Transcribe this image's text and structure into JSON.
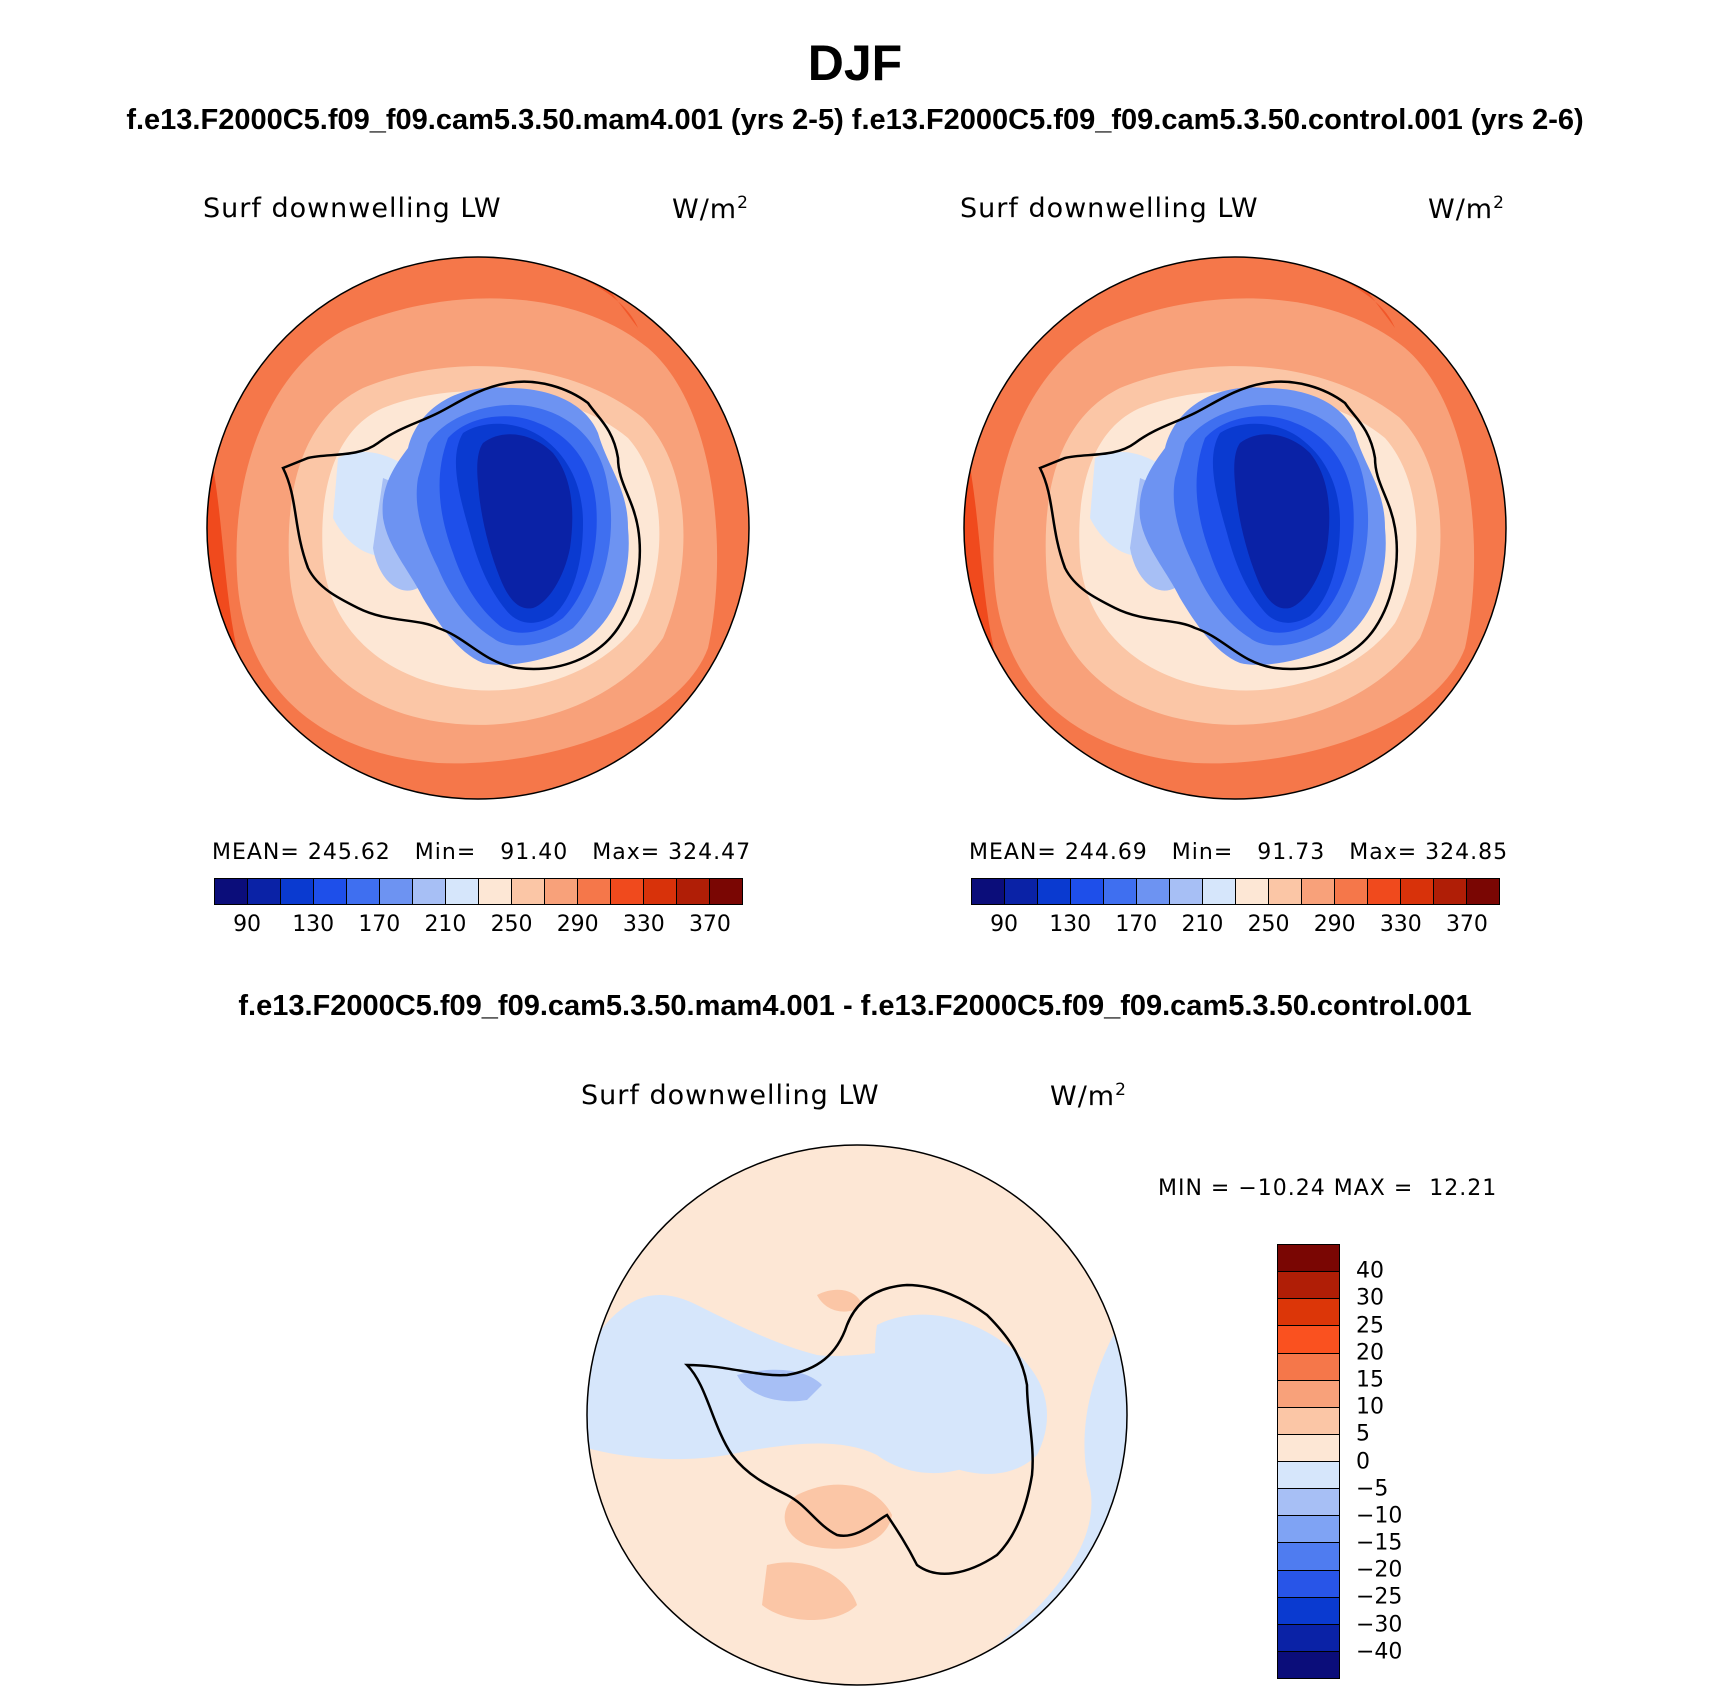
{
  "title": "DJF",
  "subtitle_top": "f.e13.F2000C5.f09_f09.cam5.3.50.mam4.001 (yrs 2-5) f.e13.F2000C5.f09_f09.cam5.3.50.control.001 (yrs 2-6)",
  "subtitle_diff": "f.e13.F2000C5.f09_f09.cam5.3.50.mam4.001 - f.e13.F2000C5.f09_f09.cam5.3.50.control.001",
  "variable": "Surf downwelling LW",
  "units": "W/m",
  "units_exp": "2",
  "panels": [
    {
      "mean_label": "MEAN=",
      "mean": "245.62",
      "min_label": "Min=",
      "min": "91.40",
      "max_label": "Max=",
      "max": "324.47"
    },
    {
      "mean_label": "MEAN=",
      "mean": "244.69",
      "min_label": "Min=",
      "min": "91.73",
      "max_label": "Max=",
      "max": "324.85"
    }
  ],
  "diff_stats": "MIN = −10.24 MAX =  12.21",
  "abs_colorbar": {
    "colors": [
      "#0b0d7a",
      "#0a22a6",
      "#0a3ad0",
      "#1e4fea",
      "#3f6ff0",
      "#6d93f2",
      "#a7bff5",
      "#d6e6fb",
      "#fde7d5",
      "#fbc6a6",
      "#f8a17a",
      "#f5774a",
      "#f04a1d",
      "#d8320a",
      "#b01e06",
      "#7a0603"
    ],
    "ticks": [
      "90",
      "130",
      "170",
      "210",
      "250",
      "290",
      "330",
      "370"
    ]
  },
  "diff_colorbar": {
    "colors": [
      "#7a0603",
      "#b01e06",
      "#dc3608",
      "#fa511f",
      "#f5774a",
      "#f8a17a",
      "#fbc6a6",
      "#fde7d5",
      "#d6e6fb",
      "#a7bff5",
      "#7fa3f4",
      "#4f7cf0",
      "#2855e8",
      "#0a3ad0",
      "#0a22a6",
      "#0b0d7a"
    ],
    "ticks": [
      "40",
      "30",
      "25",
      "20",
      "15",
      "10",
      "5",
      "0",
      "−5",
      "−10",
      "−15",
      "−20",
      "−25",
      "−30",
      "−40"
    ]
  },
  "chart_data": [
    {
      "type": "heatmap",
      "title": "Surf downwelling LW",
      "units": "W/m2",
      "case": "f.e13.F2000C5.f09_f09.cam5.3.50.mam4.001 (yrs 2-5)",
      "season": "DJF",
      "mean": 245.62,
      "min": 91.4,
      "max": 324.47,
      "contour_levels": [
        90,
        110,
        130,
        150,
        170,
        190,
        210,
        230,
        250,
        270,
        290,
        310,
        330,
        350,
        370
      ]
    },
    {
      "type": "heatmap",
      "title": "Surf downwelling LW",
      "units": "W/m2",
      "case": "f.e13.F2000C5.f09_f09.cam5.3.50.control.001 (yrs 2-6)",
      "season": "DJF",
      "mean": 244.69,
      "min": 91.73,
      "max": 324.85,
      "contour_levels": [
        90,
        110,
        130,
        150,
        170,
        190,
        210,
        230,
        250,
        270,
        290,
        310,
        330,
        350,
        370
      ]
    },
    {
      "type": "heatmap",
      "title": "Surf downwelling LW",
      "units": "W/m2",
      "case": "f.e13.F2000C5.f09_f09.cam5.3.50.mam4.001 - f.e13.F2000C5.f09_f09.cam5.3.50.control.001",
      "min": -10.24,
      "max": 12.21,
      "contour_levels": [
        -40,
        -30,
        -25,
        -20,
        -15,
        -10,
        -5,
        0,
        5,
        10,
        15,
        20,
        25,
        30,
        40
      ]
    }
  ]
}
